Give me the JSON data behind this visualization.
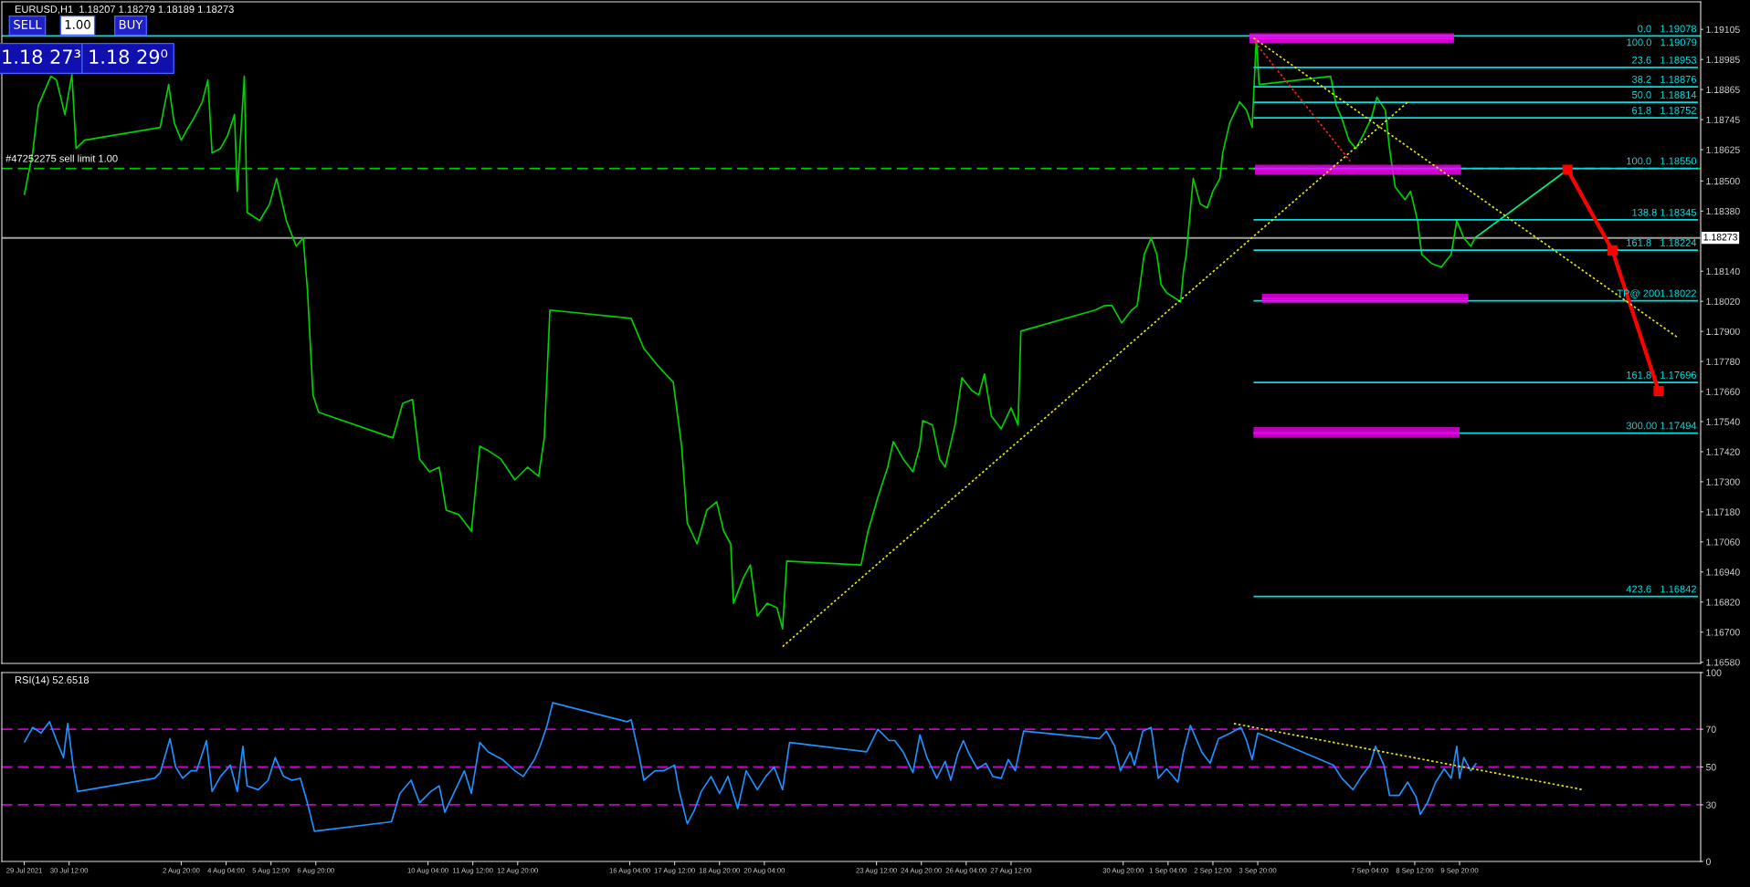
{
  "chart_data": [
    {
      "type": "line",
      "title": "EURUSD,H1  1.18207 1.18279 1.18189 1.18273",
      "xlim": [
        "2021-07-28T12:00",
        "2021-09-17T00:00"
      ],
      "ylim": [
        1.16575,
        1.19215
      ],
      "tick_labels": "y",
      "legend": false,
      "yticks": [
        {
          "value": 1.19105,
          "label": "1.19105"
        },
        {
          "value": 1.18985,
          "label": "1.18985"
        },
        {
          "value": 1.18865,
          "label": "1.18865"
        },
        {
          "value": 1.18745,
          "label": "1.18745"
        },
        {
          "value": 1.18625,
          "label": "1.18625"
        },
        {
          "value": 1.185,
          "label": "1.18500"
        },
        {
          "value": 1.1838,
          "label": "1.18380"
        },
        {
          "value": 1.1814,
          "label": "1.18140"
        },
        {
          "value": 1.1802,
          "label": "1.18020"
        },
        {
          "value": 1.179,
          "label": "1.17900"
        },
        {
          "value": 1.1778,
          "label": "1.17780"
        },
        {
          "value": 1.1766,
          "label": "1.17660"
        },
        {
          "value": 1.1754,
          "label": "1.17540"
        },
        {
          "value": 1.1742,
          "label": "1.17420"
        },
        {
          "value": 1.173,
          "label": "1.17300"
        },
        {
          "value": 1.1718,
          "label": "1.17180"
        },
        {
          "value": 1.1706,
          "label": "1.17060"
        },
        {
          "value": 1.1694,
          "label": "1.16940"
        },
        {
          "value": 1.1682,
          "label": "1.16820"
        },
        {
          "value": 1.167,
          "label": "1.16700"
        },
        {
          "value": 1.1658,
          "label": "1.16580"
        }
      ],
      "ref_lines": [
        {
          "axis": "y",
          "value": 1.1855,
          "label": "#47252275 sell limit 1.00",
          "color": "#00c800",
          "line_style": "dashed"
        },
        {
          "axis": "y",
          "value": 1.18273,
          "label": "1.18273",
          "color": "#a0a0a0",
          "line_style": "solid"
        },
        {
          "axis": "y",
          "value": 1.19079,
          "label": "100.0   1.19079",
          "color": "#00e0e0",
          "line_style": "solid"
        }
      ],
      "series": [
        {
          "color": "#00d000",
          "x": [
            "2021-07-29T04:00",
            "2021-07-29T10:00",
            "2021-07-29T14:00",
            "2021-07-29T23:00",
            "2021-07-30T03:00",
            "2021-07-30T09:00",
            "2021-07-30T14:00",
            "2021-07-30T17:00",
            "2021-07-30T23:00",
            "2021-08-02T05:00",
            "2021-08-02T11:00",
            "2021-08-02T15:00",
            "2021-08-02T20:00",
            "2021-08-03T01:00",
            "2021-08-03T05:00",
            "2021-08-03T11:00",
            "2021-08-03T15:00",
            "2021-08-03T18:00",
            "2021-08-04T00:00",
            "2021-08-04T05:00",
            "2021-08-04T10:00",
            "2021-08-04T12:00",
            "2021-08-04T17:00",
            "2021-08-04T19:00",
            "2021-08-05T04:00",
            "2021-08-05T11:00",
            "2021-08-05T16:00",
            "2021-08-05T23:00",
            "2021-08-06T06:00",
            "2021-08-06T11:00",
            "2021-08-06T14:00",
            "2021-08-06T18:00",
            "2021-08-06T22:00",
            "2021-08-09T03:00",
            "2021-08-09T10:00",
            "2021-08-09T17:00",
            "2021-08-09T22:00",
            "2021-08-10T05:00",
            "2021-08-10T12:00",
            "2021-08-10T17:00",
            "2021-08-11T02:00",
            "2021-08-11T11:00",
            "2021-08-11T17:00",
            "2021-08-11T23:00",
            "2021-08-12T08:00",
            "2021-08-12T18:00",
            "2021-08-13T03:00",
            "2021-08-13T11:00",
            "2021-08-13T15:00",
            "2021-08-13T19:00",
            "2021-08-16T05:00",
            "2021-08-16T14:00",
            "2021-08-17T00:00",
            "2021-08-17T11:00",
            "2021-08-17T17:00",
            "2021-08-17T21:00",
            "2021-08-18T04:00",
            "2021-08-18T11:00",
            "2021-08-18T18:00",
            "2021-08-18T23:00",
            "2021-08-19T04:00",
            "2021-08-19T06:00",
            "2021-08-19T13:00",
            "2021-08-19T18:00",
            "2021-08-19T23:00",
            "2021-08-20T06:00",
            "2021-08-20T13:00",
            "2021-08-20T17:00",
            "2021-08-20T20:00",
            "2021-08-23T01:00",
            "2021-08-23T06:00",
            "2021-08-23T13:00",
            "2021-08-23T20:00",
            "2021-08-24T00:00",
            "2021-08-24T07:00",
            "2021-08-24T14:00",
            "2021-08-24T19:00",
            "2021-08-24T21:00",
            "2021-08-25T04:00",
            "2021-08-25T09:00",
            "2021-08-25T13:00",
            "2021-08-25T20:00",
            "2021-08-26T01:00",
            "2021-08-26T08:00",
            "2021-08-26T13:00",
            "2021-08-26T17:00",
            "2021-08-26T22:00",
            "2021-08-27T05:00",
            "2021-08-27T12:00",
            "2021-08-27T17:00",
            "2021-08-27T19:00",
            "2021-08-30T00:00",
            "2021-08-30T07:00",
            "2021-08-30T12:00",
            "2021-08-30T19:00",
            "2021-08-31T02:00",
            "2021-08-31T06:00",
            "2021-08-31T11:00",
            "2021-08-31T16:00",
            "2021-08-31T20:00",
            "2021-08-31T23:00",
            "2021-09-01T03:00",
            "2021-09-01T08:00",
            "2021-09-01T13:00",
            "2021-09-01T15:00",
            "2021-09-01T17:00",
            "2021-09-01T22:00",
            "2021-09-02T03:00",
            "2021-09-02T08:00",
            "2021-09-02T12:00",
            "2021-09-02T17:00",
            "2021-09-02T19:00",
            "2021-09-03T00:00",
            "2021-09-03T07:00",
            "2021-09-03T12:00",
            "2021-09-03T16:00",
            "2021-09-03T19:00",
            "2021-09-03T21:00",
            "2021-09-06T00:00",
            "2021-09-06T04:00",
            "2021-09-06T08:00",
            "2021-09-06T13:00",
            "2021-09-06T18:00",
            "2021-09-06T23:00",
            "2021-09-07T05:00",
            "2021-09-07T09:00",
            "2021-09-07T15:00",
            "2021-09-07T18:00",
            "2021-09-07T22:00",
            "2021-09-08T05:00",
            "2021-09-08T09:00",
            "2021-09-08T14:00",
            "2021-09-08T17:00",
            "2021-09-09T00:00",
            "2021-09-09T07:00",
            "2021-09-09T14:00",
            "2021-09-09T18:00",
            "2021-09-09T23:00",
            "2021-09-10T04:00",
            "2021-09-10T07:00"
          ],
          "values": [
            1.18444,
            1.18612,
            1.18801,
            1.18918,
            1.18903,
            1.18765,
            1.18925,
            1.1863,
            1.18663,
            1.18714,
            1.18885,
            1.18732,
            1.18663,
            1.18714,
            1.1875,
            1.18816,
            1.18903,
            1.18612,
            1.1863,
            1.18681,
            1.18765,
            1.18459,
            1.18918,
            1.18375,
            1.18342,
            1.18408,
            1.1851,
            1.18342,
            1.1824,
            1.18273,
            1.18069,
            1.17646,
            1.17577,
            1.17475,
            1.17613,
            1.17628,
            1.17391,
            1.1734,
            1.17358,
            1.17187,
            1.17169,
            1.17103,
            1.17442,
            1.17424,
            1.17391,
            1.17307,
            1.17358,
            1.17322,
            1.17475,
            1.17985,
            1.17952,
            1.17832,
            1.17763,
            1.17697,
            1.17442,
            1.17136,
            1.17052,
            1.17187,
            1.1722,
            1.17103,
            1.17052,
            1.16815,
            1.16917,
            1.16968,
            1.16764,
            1.16815,
            1.16797,
            1.16713,
            1.16983,
            1.16968,
            1.17103,
            1.17238,
            1.17358,
            1.1746,
            1.17391,
            1.1734,
            1.17442,
            1.17544,
            1.17526,
            1.17391,
            1.17358,
            1.17526,
            1.17715,
            1.17664,
            1.17646,
            1.1773,
            1.17562,
            1.17511,
            1.17595,
            1.17526,
            1.17901,
            1.17985,
            1.18003,
            1.18003,
            1.17934,
            1.17985,
            1.18003,
            1.18207,
            1.18273,
            1.18207,
            1.18087,
            1.18054,
            1.18036,
            1.18018,
            1.18138,
            1.18207,
            1.1851,
            1.18408,
            1.18393,
            1.18459,
            1.1851,
            1.18612,
            1.18732,
            1.18816,
            1.18783,
            1.18714,
            1.19071,
            1.18885,
            1.18918,
            1.18801,
            1.1875,
            1.18663,
            1.1863,
            1.18681,
            1.1875,
            1.18834,
            1.18783,
            1.1863,
            1.18477,
            1.18426,
            1.18459,
            1.18342,
            1.18207,
            1.18171,
            1.18156,
            1.18207,
            1.18342,
            1.18273,
            1.1824,
            1.18273
          ]
        },
        {
          "color": "#00e0e0",
          "x": [
            "2021-09-03T17:00",
            "2021-09-16T22:00"
          ],
          "values": [
            1.18953,
            1.18953
          ]
        },
        {
          "color": "#00e0e0",
          "x": [
            "2021-09-03T17:00",
            "2021-09-16T22:00"
          ],
          "values": [
            1.18876,
            1.18876
          ]
        },
        {
          "color": "#00e0e0",
          "x": [
            "2021-09-03T17:00",
            "2021-09-16T22:00"
          ],
          "values": [
            1.18814,
            1.18814
          ]
        },
        {
          "color": "#00e0e0",
          "x": [
            "2021-09-03T17:00",
            "2021-09-16T22:00"
          ],
          "values": [
            1.18752,
            1.18752
          ]
        },
        {
          "color": "#00e0e0",
          "x": [
            "2021-09-03T17:00",
            "2021-09-16T22:00"
          ],
          "values": [
            1.1855,
            1.1855
          ]
        },
        {
          "color": "#00e0e0",
          "x": [
            "2021-09-03T17:00",
            "2021-09-16T22:00"
          ],
          "values": [
            1.18345,
            1.18345
          ]
        },
        {
          "color": "#00e0e0",
          "x": [
            "2021-09-03T17:00",
            "2021-09-16T22:00"
          ],
          "values": [
            1.18224,
            1.18224
          ]
        },
        {
          "color": "#00e0e0",
          "x": [
            "2021-09-03T17:00",
            "2021-09-16T22:00"
          ],
          "values": [
            1.18022,
            1.18022
          ]
        },
        {
          "color": "#00e0e0",
          "x": [
            "2021-09-03T17:00",
            "2021-09-16T22:00"
          ],
          "values": [
            1.17696,
            1.17696
          ]
        },
        {
          "color": "#00e0e0",
          "x": [
            "2021-09-03T17:00",
            "2021-09-16T22:00"
          ],
          "values": [
            1.17494,
            1.17494
          ]
        },
        {
          "color": "#00e0e0",
          "x": [
            "2021-09-03T17:00",
            "2021-09-16T22:00"
          ],
          "values": [
            1.16842,
            1.16842
          ]
        },
        {
          "color": "#ff00ff",
          "x": [
            "2021-09-03T14:00",
            "2021-09-09T16:00"
          ],
          "values": [
            1.1907,
            1.1907
          ],
          "lower": [
            1.19051,
            1.19051
          ],
          "upper": [
            1.19089,
            1.19089
          ]
        },
        {
          "color": "#f800f8",
          "x": [
            "2021-09-03T18:00",
            "2021-09-09T21:00"
          ],
          "values": [
            1.18546,
            1.18546
          ],
          "lower": [
            1.18526,
            1.18526
          ],
          "upper": [
            1.18565,
            1.18565
          ]
        },
        {
          "color": "#f000f0",
          "x": [
            "2021-09-03T23:00",
            "2021-09-10T02:00"
          ],
          "values": [
            1.18031,
            1.18031
          ],
          "lower": [
            1.18012,
            1.18012
          ],
          "upper": [
            1.1805,
            1.1805
          ]
        },
        {
          "color": "#e800e8",
          "x": [
            "2021-09-03T17:00",
            "2021-09-09T20:00"
          ],
          "values": [
            1.17496,
            1.17496
          ],
          "lower": [
            1.17475,
            1.17475
          ],
          "upper": [
            1.17518,
            1.17518
          ]
        },
        {
          "color": "#e8e800",
          "line_style": "dotted",
          "x": [
            "2021-08-20T17:00",
            "2021-09-08T07:00"
          ],
          "values": [
            1.16642,
            1.18815
          ]
        },
        {
          "color": "#e8e800",
          "line_style": "dotted",
          "x": [
            "2021-09-03T17:00",
            "2021-09-16T07:00"
          ],
          "values": [
            1.19071,
            1.17878
          ]
        },
        {
          "color": "#ff2020",
          "line_style": "dotted",
          "x": [
            "2021-09-03T18:00",
            "2021-09-06T14:00"
          ],
          "values": [
            1.19054,
            1.18579
          ]
        },
        {
          "color": "#00ee80",
          "x": [
            "2021-09-10T07:00",
            "2021-09-13T01:00"
          ],
          "values": [
            1.18273,
            1.18545
          ]
        },
        {
          "color": "#ff0000",
          "marker": "square",
          "x": [
            "2021-09-13T01:00",
            "2021-09-14T09:00",
            "2021-09-15T18:00"
          ],
          "values": [
            1.18545,
            1.18223,
            1.17662
          ]
        }
      ],
      "annotations": [
        {
          "text": "0.0   1.19078",
          "x": "2021-09-16T22:00",
          "y": 1.19078
        },
        {
          "text": "23.6   1.18953",
          "x": "2021-09-16T22:00",
          "y": 1.18953
        },
        {
          "text": "38.2   1.18876",
          "x": "2021-09-16T22:00",
          "y": 1.18876
        },
        {
          "text": "50.0   1.18814",
          "x": "2021-09-16T22:00",
          "y": 1.18814
        },
        {
          "text": "61.8   1.18752",
          "x": "2021-09-16T22:00",
          "y": 1.18752
        },
        {
          "text": "100.0   1.18550",
          "x": "2021-09-16T22:00",
          "y": 1.1855
        },
        {
          "text": "138.8 1.18345",
          "x": "2021-09-16T22:00",
          "y": 1.18345
        },
        {
          "text": "161.8   1.18224",
          "x": "2021-09-16T22:00",
          "y": 1.18224
        },
        {
          "text": "TP@ 2001.18022",
          "x": "2021-09-16T22:00",
          "y": 1.18022
        },
        {
          "text": "161.8   1.17696",
          "x": "2021-09-16T22:00",
          "y": 1.17696
        },
        {
          "text": "300.00 1.17494",
          "x": "2021-09-16T22:00",
          "y": 1.17494
        },
        {
          "text": "423.6   1.16842",
          "x": "2021-09-16T22:00",
          "y": 1.16842
        },
        "SELL",
        "1.00",
        "BUY",
        "1.18 27³",
        "1.18 29⁰"
      ]
    },
    {
      "type": "line",
      "title": "RSI(14) 52.6518",
      "xlim": [
        "2021-07-28T12:00",
        "2021-09-17T00:00"
      ],
      "ylim": [
        0,
        100
      ],
      "yticks": [
        0,
        30,
        50,
        70,
        100
      ],
      "legend": false,
      "xticks": [
        {
          "value": "2021-07-29T04:00",
          "label": "29 Jul 2021"
        },
        {
          "value": "2021-07-30T12:00",
          "label": "30 Jul 12:00"
        },
        {
          "value": "2021-08-02T20:00",
          "label": "2 Aug 20:00"
        },
        {
          "value": "2021-08-04T04:00",
          "label": "4 Aug 04:00"
        },
        {
          "value": "2021-08-05T12:00",
          "label": "5 Aug 12:00"
        },
        {
          "value": "2021-08-06T20:00",
          "label": "6 Aug 20:00"
        },
        {
          "value": "2021-08-10T04:00",
          "label": "10 Aug 04:00"
        },
        {
          "value": "2021-08-11T12:00",
          "label": "11 Aug 12:00"
        },
        {
          "value": "2021-08-12T20:00",
          "label": "12 Aug 20:00"
        },
        {
          "value": "2021-08-16T04:00",
          "label": "16 Aug 04:00"
        },
        {
          "value": "2021-08-17T12:00",
          "label": "17 Aug 12:00"
        },
        {
          "value": "2021-08-18T20:00",
          "label": "18 Aug 20:00"
        },
        {
          "value": "2021-08-20T04:00",
          "label": "20 Aug 04:00"
        },
        {
          "value": "2021-08-23T12:00",
          "label": "23 Aug 12:00"
        },
        {
          "value": "2021-08-24T20:00",
          "label": "24 Aug 20:00"
        },
        {
          "value": "2021-08-26T04:00",
          "label": "26 Aug 04:00"
        },
        {
          "value": "2021-08-27T12:00",
          "label": "27 Aug 12:00"
        },
        {
          "value": "2021-08-30T20:00",
          "label": "30 Aug 20:00"
        },
        {
          "value": "2021-09-01T04:00",
          "label": "1 Sep 04:00"
        },
        {
          "value": "2021-09-02T12:00",
          "label": "2 Sep 12:00"
        },
        {
          "value": "2021-09-03T20:00",
          "label": "3 Sep 20:00"
        },
        {
          "value": "2021-09-07T04:00",
          "label": "7 Sep 04:00"
        },
        {
          "value": "2021-09-08T12:00",
          "label": "8 Sep 12:00"
        },
        {
          "value": "2021-09-09T20:00",
          "label": "9 Sep 20:00"
        }
      ],
      "ref_lines": [
        {
          "axis": "y",
          "value": 70,
          "color": "#c800c8",
          "line_style": "dashed"
        },
        {
          "axis": "y",
          "value": 50,
          "color": "#c800c8",
          "line_style": "dashed"
        },
        {
          "axis": "y",
          "value": 30,
          "color": "#c800c8",
          "line_style": "dashed"
        }
      ],
      "series": [
        {
          "color": "#1e90ff",
          "x": [
            "2021-07-29T04:00",
            "2021-07-29T10:00",
            "2021-07-29T16:00",
            "2021-07-29T22:00",
            "2021-07-30T03:00",
            "2021-07-30T08:00",
            "2021-07-30T11:00",
            "2021-07-30T15:00",
            "2021-07-30T18:00",
            "2021-08-02T01:00",
            "2021-08-02T05:00",
            "2021-08-02T12:00",
            "2021-08-02T16:00",
            "2021-08-02T21:00",
            "2021-08-03T03:00",
            "2021-08-03T07:00",
            "2021-08-03T14:00",
            "2021-08-03T18:00",
            "2021-08-04T00:00",
            "2021-08-04T07:00",
            "2021-08-04T12:00",
            "2021-08-04T16:00",
            "2021-08-04T19:00",
            "2021-08-05T03:00",
            "2021-08-05T10:00",
            "2021-08-05T15:00",
            "2021-08-05T21:00",
            "2021-08-06T03:00",
            "2021-08-06T09:00",
            "2021-08-06T14:00",
            "2021-08-06T19:00",
            "2021-08-09T02:00",
            "2021-08-09T08:00",
            "2021-08-09T16:00",
            "2021-08-09T22:00",
            "2021-08-10T06:00",
            "2021-08-10T12:00",
            "2021-08-10T16:00",
            "2021-08-10T23:00",
            "2021-08-11T06:00",
            "2021-08-11T11:00",
            "2021-08-11T17:00",
            "2021-08-11T23:00",
            "2021-08-12T09:00",
            "2021-08-12T18:00",
            "2021-08-13T00:00",
            "2021-08-13T08:00",
            "2021-08-13T12:00",
            "2021-08-13T17:00",
            "2021-08-13T21:00",
            "2021-08-16T02:00",
            "2021-08-16T05:00",
            "2021-08-16T11:00",
            "2021-08-16T14:00",
            "2021-08-16T22:00",
            "2021-08-17T04:00",
            "2021-08-17T12:00",
            "2021-08-17T15:00",
            "2021-08-17T21:00",
            "2021-08-18T02:00",
            "2021-08-18T07:00",
            "2021-08-18T14:00",
            "2021-08-18T20:00",
            "2021-08-19T02:00",
            "2021-08-19T09:00",
            "2021-08-19T15:00",
            "2021-08-19T23:00",
            "2021-08-20T05:00",
            "2021-08-20T11:00",
            "2021-08-20T17:00",
            "2021-08-20T22:00",
            "2021-08-23T05:00",
            "2021-08-23T13:00",
            "2021-08-23T21:00",
            "2021-08-24T01:00",
            "2021-08-24T07:00",
            "2021-08-24T14:00",
            "2021-08-24T19:00",
            "2021-08-25T00:00",
            "2021-08-25T07:00",
            "2021-08-25T13:00",
            "2021-08-25T17:00",
            "2021-08-25T22:00",
            "2021-08-26T02:00",
            "2021-08-26T06:00",
            "2021-08-26T12:00",
            "2021-08-26T18:00",
            "2021-08-26T23:00",
            "2021-08-27T05:00",
            "2021-08-27T10:00",
            "2021-08-27T15:00",
            "2021-08-27T21:00",
            "2021-08-30T03:00",
            "2021-08-30T08:00",
            "2021-08-30T14:00",
            "2021-08-30T18:00",
            "2021-08-31T01:00",
            "2021-08-31T04:00",
            "2021-08-31T10:00",
            "2021-08-31T16:00",
            "2021-08-31T21:00",
            "2021-09-01T03:00",
            "2021-09-01T11:00",
            "2021-09-01T15:00",
            "2021-09-01T20:00",
            "2021-09-02T04:00",
            "2021-09-02T10:00",
            "2021-09-02T16:00",
            "2021-09-02T22:00",
            "2021-09-03T03:00",
            "2021-09-03T08:00",
            "2021-09-03T12:00",
            "2021-09-03T16:00",
            "2021-09-03T20:00",
            "2021-09-06T02:00",
            "2021-09-06T08:00",
            "2021-09-06T16:00",
            "2021-09-06T22:00",
            "2021-09-07T04:00",
            "2021-09-07T08:00",
            "2021-09-07T14:00",
            "2021-09-07T18:00",
            "2021-09-08T01:00",
            "2021-09-08T07:00",
            "2021-09-08T13:00",
            "2021-09-08T16:00",
            "2021-09-08T21:00",
            "2021-09-09T03:00",
            "2021-09-09T09:00",
            "2021-09-09T14:00",
            "2021-09-09T18:00",
            "2021-09-09T20:00",
            "2021-09-09T23:00",
            "2021-09-10T04:00",
            "2021-09-10T08:00"
          ],
          "values": [
            63,
            71,
            68,
            74,
            64,
            55,
            73,
            50,
            37,
            44,
            47,
            65,
            50,
            44,
            48,
            48,
            64,
            37,
            45,
            51,
            37,
            61,
            40,
            38,
            43,
            55,
            45,
            43,
            44,
            31,
            16,
            21,
            36,
            43,
            31,
            37,
            40,
            26,
            37,
            48,
            36,
            63,
            58,
            54,
            48,
            45,
            54,
            61,
            72,
            84,
            74,
            75,
            55,
            43,
            48,
            48,
            51,
            38,
            20,
            27,
            37,
            45,
            36,
            45,
            28,
            48,
            38,
            45,
            50,
            38,
            63,
            58,
            70,
            64,
            64,
            58,
            47,
            67,
            55,
            44,
            53,
            43,
            57,
            64,
            57,
            49,
            52,
            45,
            44,
            54,
            48,
            69,
            65,
            69,
            61,
            48,
            58,
            51,
            69,
            71,
            44,
            49,
            42,
            58,
            72,
            58,
            52,
            65,
            67,
            69,
            71,
            64,
            54,
            68,
            51,
            44,
            38,
            45,
            51,
            61,
            51,
            35,
            35,
            42,
            34,
            25,
            31,
            42,
            49,
            44,
            61,
            44,
            55,
            48,
            52
          ]
        },
        {
          "color": "#e8e800",
          "line_style": "dotted",
          "x": [
            "2021-09-03T03:00",
            "2021-09-13T12:00"
          ],
          "values": [
            73,
            38
          ]
        }
      ]
    }
  ]
}
